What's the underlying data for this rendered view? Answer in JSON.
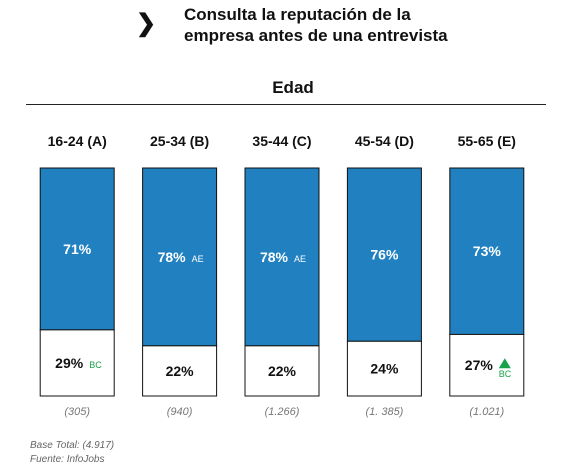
{
  "header": {
    "title_line1": "Consulta la reputación de la",
    "title_line2": "empresa antes de una entrevista",
    "arrow": "❯"
  },
  "group_label": "Edad",
  "footer": {
    "base_total": "Base Total: (4.917)",
    "source": "Fuente: InfoJobs"
  },
  "colors": {
    "yes": "#2080c0",
    "no": "#ffffff",
    "sig_up": "#18a34a",
    "border": "#111111"
  },
  "chart_data": {
    "type": "bar",
    "stacked": true,
    "categories": [
      "16-24 (A)",
      "25-34 (B)",
      "35-44 (C)",
      "45-54 (D)",
      "55-65 (E)"
    ],
    "series": [
      {
        "values": [
          71,
          78,
          78,
          76,
          73
        ],
        "labels": [
          "71%",
          "78%",
          "78%",
          "76%",
          "73%"
        ],
        "sig": [
          "",
          "AE",
          "AE",
          "",
          ""
        ]
      },
      {
        "values": [
          29,
          22,
          22,
          24,
          27
        ],
        "labels": [
          "29%",
          "22%",
          "22%",
          "24%",
          "27%"
        ],
        "sig": [
          "BC",
          "",
          "",
          "",
          "BC"
        ]
      }
    ],
    "sig_up_marker": [
      false,
      false,
      false,
      false,
      true
    ],
    "bases": [
      "(305)",
      "(940)",
      "(1.266)",
      "(1. 385)",
      "(1.021)"
    ],
    "ylim": [
      0,
      100
    ]
  }
}
